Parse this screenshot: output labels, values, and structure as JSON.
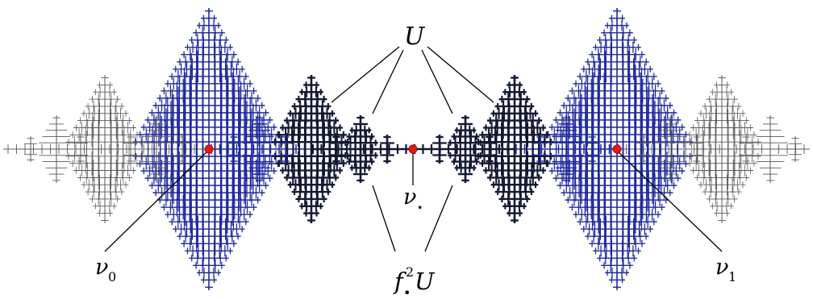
{
  "labels": {
    "U": "U",
    "f_symbol": "f",
    "f_superscript": "2",
    "f_subscript": "•",
    "f_target": "U",
    "nu_star": "ν",
    "nu_star_sub": "⋆",
    "nu_0": "ν",
    "nu_0_sub": "0",
    "nu_1": "ν",
    "nu_1_sub": "1"
  },
  "colors": {
    "outer": "#5a5a5a",
    "middle": "#1f2a9c",
    "inner": "#131833",
    "point": "#e8160c",
    "line": "#000000"
  }
}
